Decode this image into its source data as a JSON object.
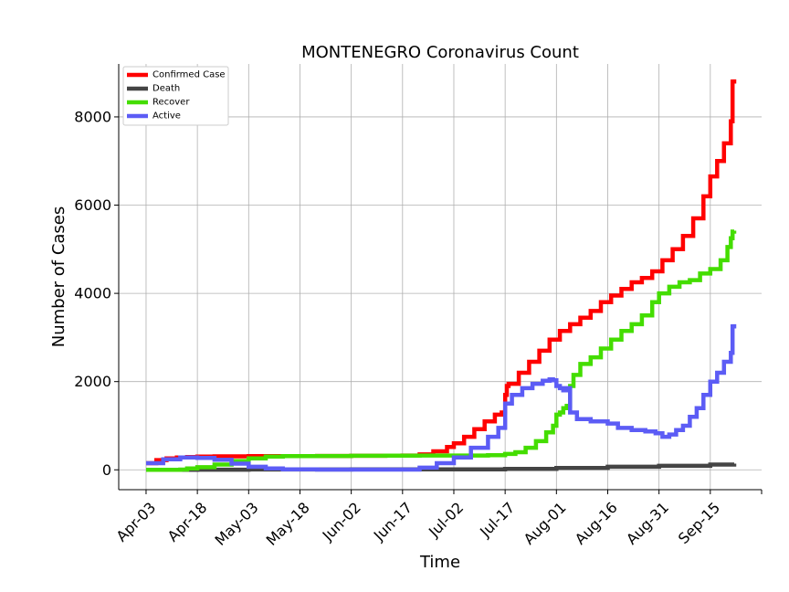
{
  "chart_data": {
    "type": "line",
    "title": "MONTENEGRO Coronavirus Count",
    "xlabel": "Time",
    "ylabel": "Number of Cases",
    "x_tick_labels": [
      "Apr-03",
      "Apr-18",
      "May-03",
      "May-18",
      "Jun-02",
      "Jun-17",
      "Jul-02",
      "Jul-17",
      "Aug-01",
      "Aug-16",
      "Aug-31",
      "Sep-15"
    ],
    "x_ticks_day": [
      0,
      15,
      30,
      45,
      60,
      75,
      90,
      105,
      120,
      135,
      150,
      165
    ],
    "x_range_day": [
      -8,
      180
    ],
    "y_ticks": [
      0,
      2000,
      4000,
      6000,
      8000
    ],
    "ylim": [
      -450,
      9200
    ],
    "grid": true,
    "legend_position": "top-left",
    "series": [
      {
        "name": "Confirmed Case",
        "color": "#ff0000",
        "points": [
          [
            0,
            150
          ],
          [
            3,
            220
          ],
          [
            6,
            260
          ],
          [
            9,
            280
          ],
          [
            12,
            290
          ],
          [
            15,
            300
          ],
          [
            20,
            305
          ],
          [
            30,
            310
          ],
          [
            40,
            312
          ],
          [
            50,
            315
          ],
          [
            60,
            318
          ],
          [
            70,
            320
          ],
          [
            75,
            325
          ],
          [
            80,
            350
          ],
          [
            84,
            420
          ],
          [
            88,
            520
          ],
          [
            90,
            600
          ],
          [
            93,
            750
          ],
          [
            96,
            920
          ],
          [
            99,
            1100
          ],
          [
            102,
            1250
          ],
          [
            104,
            1300
          ],
          [
            105,
            1330
          ],
          [
            105.01,
            1700
          ],
          [
            105.5,
            1900
          ],
          [
            106,
            1950
          ],
          [
            109,
            2200
          ],
          [
            112,
            2450
          ],
          [
            115,
            2700
          ],
          [
            118,
            2950
          ],
          [
            121,
            3150
          ],
          [
            124,
            3300
          ],
          [
            127,
            3450
          ],
          [
            130,
            3600
          ],
          [
            133,
            3800
          ],
          [
            136,
            3950
          ],
          [
            139,
            4100
          ],
          [
            142,
            4250
          ],
          [
            145,
            4350
          ],
          [
            148,
            4500
          ],
          [
            151,
            4750
          ],
          [
            154,
            5000
          ],
          [
            157,
            5300
          ],
          [
            160,
            5700
          ],
          [
            163,
            6200
          ],
          [
            165,
            6650
          ],
          [
            167,
            7000
          ],
          [
            169,
            7400
          ],
          [
            171,
            7900
          ],
          [
            171.5,
            8800
          ],
          [
            172,
            8850
          ]
        ]
      },
      {
        "name": "Death",
        "color": "#444444",
        "points": [
          [
            0,
            0
          ],
          [
            15,
            4
          ],
          [
            30,
            8
          ],
          [
            60,
            9
          ],
          [
            90,
            10
          ],
          [
            105,
            20
          ],
          [
            120,
            40
          ],
          [
            135,
            70
          ],
          [
            150,
            90
          ],
          [
            165,
            120
          ],
          [
            172,
            140
          ]
        ]
      },
      {
        "name": "Recover",
        "color": "#44dd00",
        "points": [
          [
            0,
            0
          ],
          [
            10,
            5
          ],
          [
            12,
            30
          ],
          [
            15,
            60
          ],
          [
            20,
            120
          ],
          [
            25,
            200
          ],
          [
            30,
            260
          ],
          [
            35,
            300
          ],
          [
            40,
            312
          ],
          [
            50,
            315
          ],
          [
            60,
            318
          ],
          [
            70,
            320
          ],
          [
            80,
            325
          ],
          [
            90,
            325
          ],
          [
            100,
            330
          ],
          [
            105,
            360
          ],
          [
            108,
            400
          ],
          [
            111,
            500
          ],
          [
            114,
            650
          ],
          [
            117,
            850
          ],
          [
            119,
            1000
          ],
          [
            120,
            1250
          ],
          [
            121,
            1300
          ],
          [
            122,
            1400
          ],
          [
            123,
            1450
          ],
          [
            124,
            1900
          ],
          [
            125,
            2150
          ],
          [
            127,
            2400
          ],
          [
            130,
            2550
          ],
          [
            133,
            2750
          ],
          [
            136,
            2950
          ],
          [
            139,
            3150
          ],
          [
            142,
            3300
          ],
          [
            145,
            3500
          ],
          [
            148,
            3800
          ],
          [
            150,
            4000
          ],
          [
            153,
            4150
          ],
          [
            156,
            4250
          ],
          [
            159,
            4300
          ],
          [
            162,
            4450
          ],
          [
            165,
            4550
          ],
          [
            168,
            4750
          ],
          [
            170,
            5050
          ],
          [
            171,
            5250
          ],
          [
            171.5,
            5400
          ],
          [
            172,
            5420
          ]
        ]
      },
      {
        "name": "Active",
        "color": "#5c5cf5",
        "points": [
          [
            0,
            150
          ],
          [
            5,
            240
          ],
          [
            10,
            280
          ],
          [
            15,
            270
          ],
          [
            20,
            230
          ],
          [
            25,
            140
          ],
          [
            30,
            70
          ],
          [
            35,
            30
          ],
          [
            40,
            10
          ],
          [
            50,
            5
          ],
          [
            60,
            5
          ],
          [
            75,
            5
          ],
          [
            80,
            50
          ],
          [
            85,
            150
          ],
          [
            90,
            280
          ],
          [
            95,
            500
          ],
          [
            100,
            750
          ],
          [
            103,
            950
          ],
          [
            105,
            970
          ],
          [
            105.01,
            1500
          ],
          [
            107,
            1700
          ],
          [
            110,
            1850
          ],
          [
            113,
            1950
          ],
          [
            116,
            2020
          ],
          [
            118,
            2050
          ],
          [
            119,
            2030
          ],
          [
            120,
            1900
          ],
          [
            121,
            1850
          ],
          [
            122,
            1800
          ],
          [
            123,
            1850
          ],
          [
            124,
            1300
          ],
          [
            126,
            1150
          ],
          [
            130,
            1100
          ],
          [
            135,
            1050
          ],
          [
            138,
            950
          ],
          [
            142,
            900
          ],
          [
            146,
            870
          ],
          [
            149,
            830
          ],
          [
            151,
            750
          ],
          [
            153,
            800
          ],
          [
            155,
            900
          ],
          [
            157,
            1000
          ],
          [
            159,
            1200
          ],
          [
            161,
            1400
          ],
          [
            163,
            1700
          ],
          [
            165,
            2000
          ],
          [
            167,
            2200
          ],
          [
            169,
            2450
          ],
          [
            171,
            2650
          ],
          [
            171.5,
            3250
          ],
          [
            172,
            3300
          ]
        ]
      }
    ]
  }
}
